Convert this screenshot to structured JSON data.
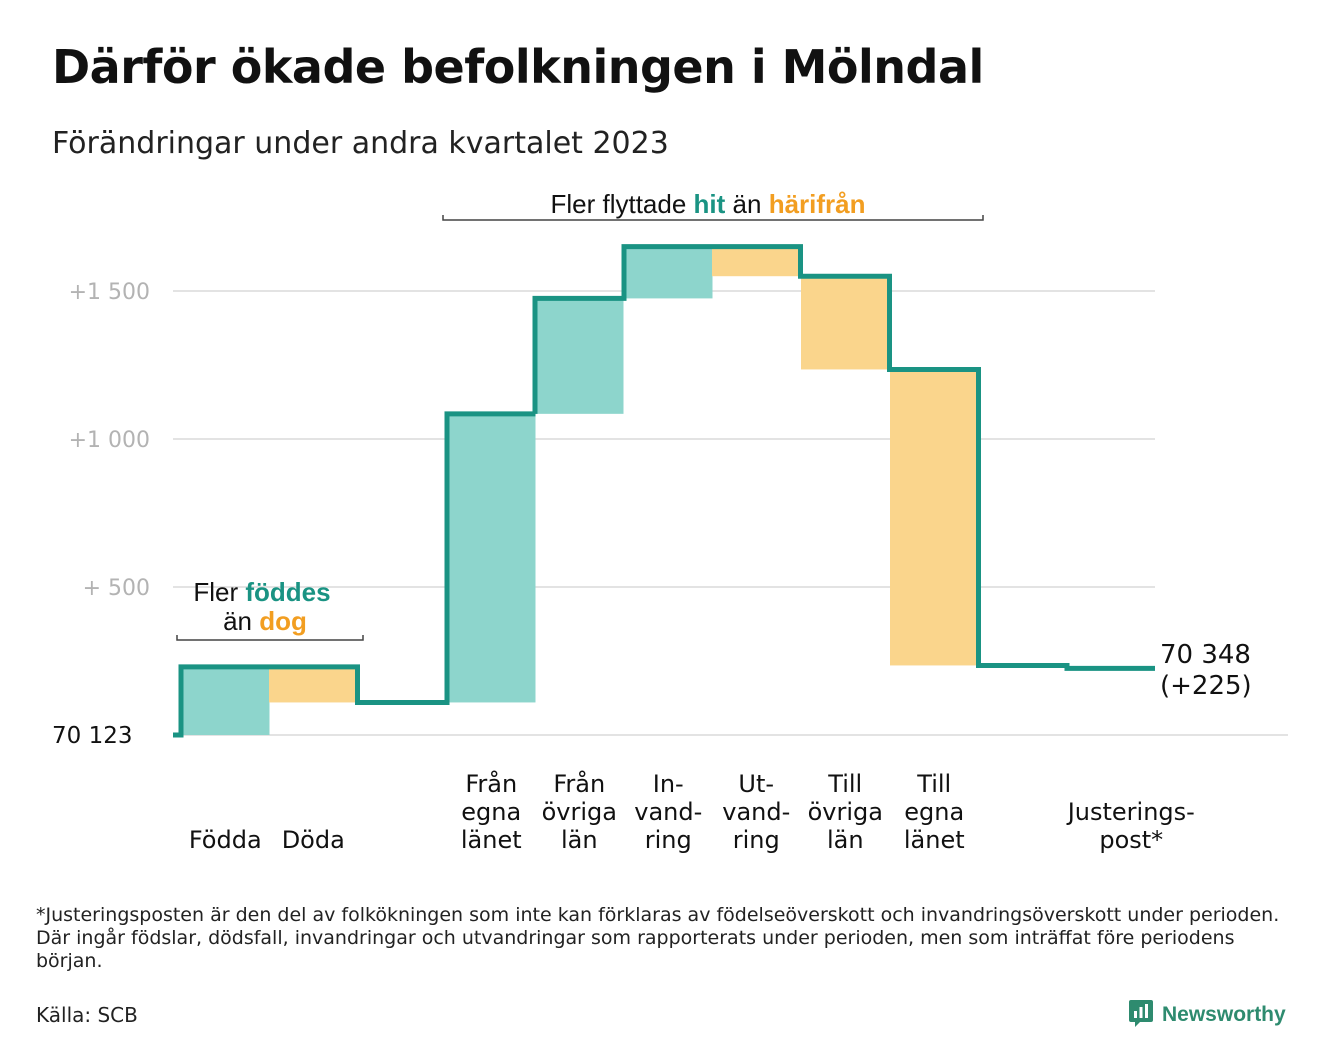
{
  "title": "Därför ökade befolkningen i Mölndal",
  "subtitle": "Förändringar under andra kvartalet 2023",
  "colors": {
    "increase_fill": "#8dd5cc",
    "decrease_fill": "#fad58c",
    "line": "#1a9383",
    "teal_text": "#1a9383",
    "orange_text": "#f29e21",
    "grid": "#e3e3e3",
    "tick_text": "#b3b3b3"
  },
  "chart_data": {
    "type": "waterfall",
    "title": "Därför ökade befolkningen i Mölndal",
    "subtitle": "Förändringar under andra kvartalet 2023",
    "start_value": 70123,
    "start_label": "70 123",
    "end_value": 70348,
    "end_label": "70 348",
    "end_change_label": "(+225)",
    "y_axis": {
      "ylim": [
        0,
        1500
      ],
      "ticks": [
        {
          "value": 500,
          "label": "+   500"
        },
        {
          "value": 1000,
          "label": "+1   000"
        },
        {
          "value": 1500,
          "label": "+1   500"
        }
      ],
      "grid": true
    },
    "steps": [
      {
        "label_lines": [
          "Födda"
        ],
        "change": 230,
        "kind": "increase"
      },
      {
        "label_lines": [
          "Döda"
        ],
        "change": -120,
        "kind": "decrease"
      },
      {
        "label_lines": [
          "Från",
          "egna",
          "länet"
        ],
        "change": 975,
        "kind": "increase"
      },
      {
        "label_lines": [
          "Från",
          "övriga",
          "län"
        ],
        "change": 390,
        "kind": "increase"
      },
      {
        "label_lines": [
          "In-",
          "vand-",
          "ring"
        ],
        "change": 175,
        "kind": "increase"
      },
      {
        "label_lines": [
          "Ut-",
          "vand-",
          "ring"
        ],
        "change": -100,
        "kind": "decrease"
      },
      {
        "label_lines": [
          "Till",
          "övriga",
          "län"
        ],
        "change": -315,
        "kind": "decrease"
      },
      {
        "label_lines": [
          "Till",
          "egna",
          "länet"
        ],
        "change": -1000,
        "kind": "decrease"
      },
      {
        "label_lines": [
          "Justerings-",
          "post*"
        ],
        "change": -10,
        "kind": "adjustment"
      }
    ],
    "annotations": {
      "births_deaths": {
        "prefix": "Fler",
        "teal_word": "föddes",
        "middle": "än",
        "orange_word": "dog"
      },
      "migration": {
        "prefix": "Fler flyttade",
        "teal_word": "hit",
        "middle": "än",
        "orange_word": "härifrån"
      }
    }
  },
  "footnote": "*Justeringsposten är den del av folkökningen som inte kan förklaras av födelseöverskott och invandringsöverskott under perioden. Där ingår födslar, dödsfall, invandringar och utvandringar som rapporterats under perioden, men som inträffat före periodens början.",
  "source": "Källa: SCB",
  "brand": {
    "name": "Newsworthy",
    "logo_icon": "bar-chart-speech-bubble-icon"
  }
}
